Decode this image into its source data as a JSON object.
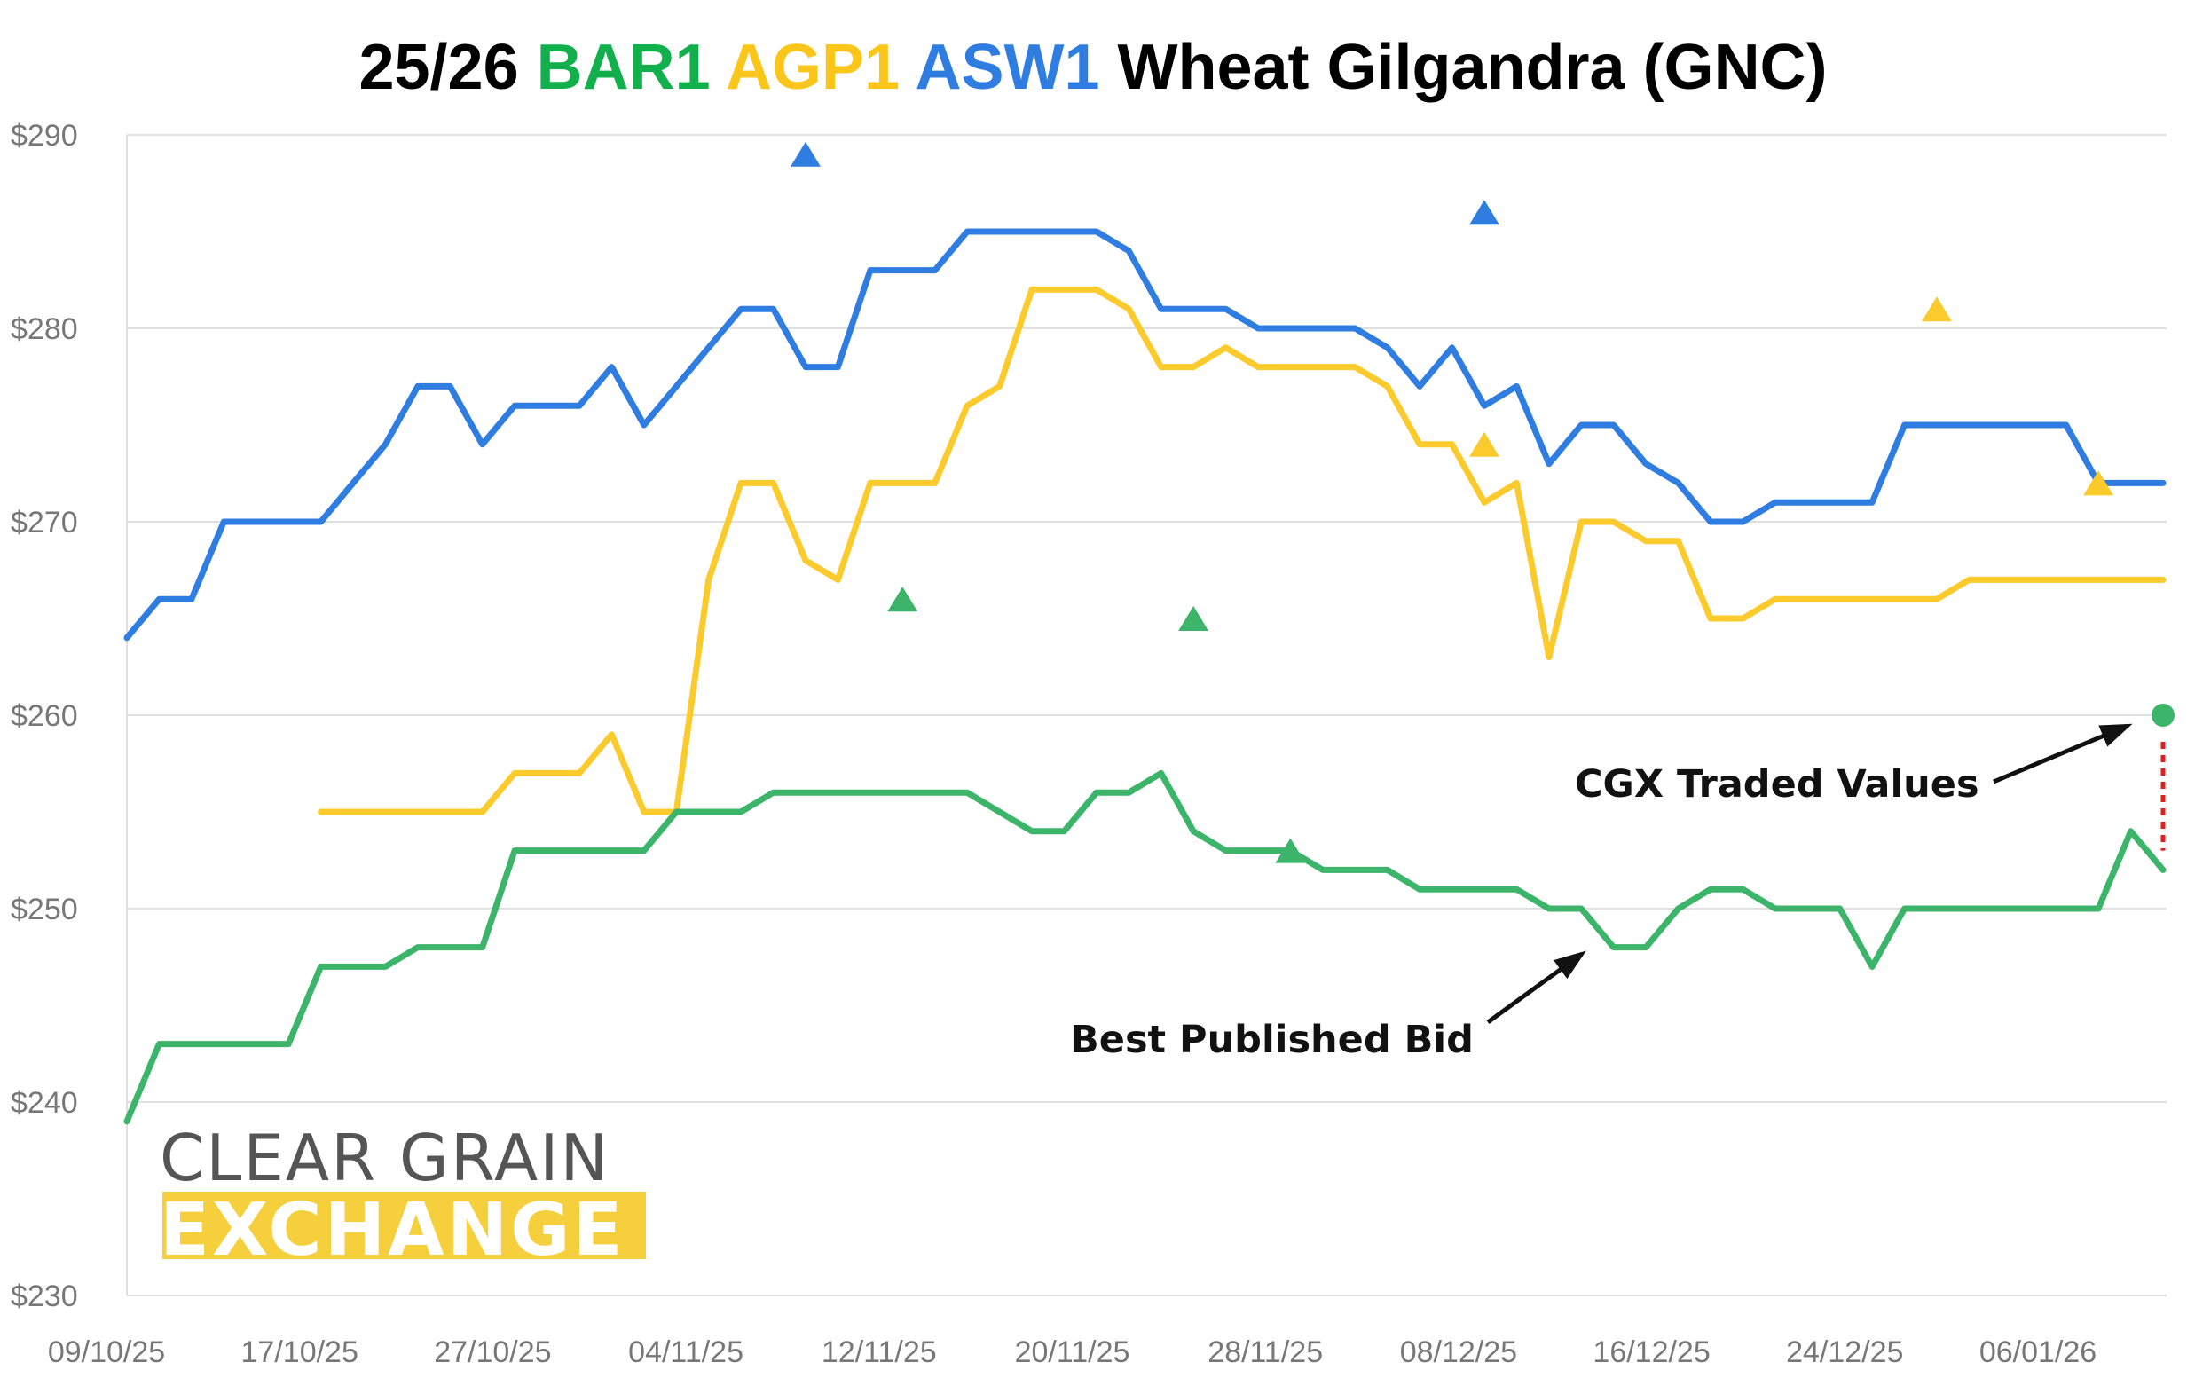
{
  "colors": {
    "bar1": "#3cb56a",
    "agp1": "#fbcb2e",
    "asw1": "#2f7de1",
    "title_bar1": "#12b04c",
    "title_agp1": "#fbc51a",
    "title_asw1": "#2f7de1",
    "title_text": "#000000",
    "grid": "#e0e0e0",
    "logo_band": "#f6cf3d",
    "dotted_line": "#e01f1f"
  },
  "chart_data": {
    "type": "line",
    "title": {
      "prefix": "25/26",
      "bar1": "BAR1",
      "agp1": "AGP1",
      "asw1": "ASW1",
      "suffix": "Wheat Gilgandra (GNC)"
    },
    "xlabel": "",
    "ylabel": "",
    "ylim": [
      230,
      290
    ],
    "yticks": [
      230,
      240,
      250,
      260,
      270,
      280,
      290
    ],
    "ytick_labels": [
      "$230",
      "$240",
      "$250",
      "$260",
      "$270",
      "$280",
      "$290"
    ],
    "xtick_labels": [
      "09/10/25",
      "17/10/25",
      "27/10/25",
      "04/11/25",
      "12/11/25",
      "20/11/25",
      "28/11/25",
      "08/12/25",
      "16/12/25",
      "24/12/25",
      "06/01/26"
    ],
    "grid": true,
    "legend": "none",
    "series": [
      {
        "name": "ASW1",
        "kind": "best_published_bid",
        "values": [
          264,
          266,
          266,
          270,
          270,
          270,
          270,
          272,
          274,
          277,
          277,
          274,
          276,
          276,
          276,
          278,
          275,
          277,
          279,
          281,
          281,
          278,
          278,
          283,
          283,
          283,
          285,
          285,
          285,
          285,
          285,
          284,
          281,
          281,
          281,
          280,
          280,
          280,
          280,
          279,
          277,
          279,
          276,
          277,
          273,
          275,
          275,
          273,
          272,
          270,
          270,
          271,
          271,
          271,
          271,
          275,
          275,
          275,
          275,
          275,
          275,
          272,
          272,
          272
        ]
      },
      {
        "name": "AGP1",
        "kind": "best_published_bid",
        "values": [
          null,
          null,
          null,
          null,
          null,
          null,
          255,
          255,
          255,
          255,
          255,
          255,
          257,
          257,
          257,
          259,
          255,
          255,
          267,
          272,
          272,
          268,
          267,
          272,
          272,
          272,
          276,
          277,
          282,
          282,
          282,
          281,
          278,
          278,
          279,
          278,
          278,
          278,
          278,
          277,
          274,
          274,
          271,
          272,
          263,
          270,
          270,
          269,
          269,
          265,
          265,
          266,
          266,
          266,
          266,
          266,
          266,
          267,
          267,
          267,
          267,
          267,
          267,
          267
        ]
      },
      {
        "name": "BAR1",
        "kind": "best_published_bid",
        "values": [
          239,
          243,
          243,
          243,
          243,
          243,
          247,
          247,
          247,
          248,
          248,
          248,
          253,
          253,
          253,
          253,
          253,
          255,
          255,
          255,
          256,
          256,
          256,
          256,
          256,
          256,
          256,
          255,
          254,
          254,
          256,
          256,
          257,
          254,
          253,
          253,
          253,
          252,
          252,
          252,
          251,
          251,
          251,
          251,
          250,
          250,
          248,
          248,
          250,
          251,
          251,
          250,
          250,
          250,
          247,
          250,
          250,
          250,
          250,
          250,
          250,
          250,
          254,
          252
        ]
      }
    ],
    "traded_values": [
      {
        "series": "ASW1",
        "x_index": 21,
        "value": 289
      },
      {
        "series": "ASW1",
        "x_index": 42,
        "value": 286
      },
      {
        "series": "AGP1",
        "x_index": 42,
        "value": 274
      },
      {
        "series": "AGP1",
        "x_index": 56,
        "value": 281
      },
      {
        "series": "AGP1",
        "x_index": 61,
        "value": 272
      },
      {
        "series": "BAR1",
        "x_index": 24,
        "value": 266
      },
      {
        "series": "BAR1",
        "x_index": 33,
        "value": 265
      },
      {
        "series": "BAR1",
        "x_index": 36,
        "value": 253
      }
    ],
    "latest_traded": {
      "series": "BAR1",
      "x_index": 63,
      "value": 260
    },
    "annotations": [
      {
        "text": "CGX Traded Values",
        "target": "latest_traded"
      },
      {
        "text": "Best Published Bid",
        "target": "BAR1",
        "x_index": 46
      }
    ],
    "logo": {
      "line1": "CLEAR GRAIN",
      "line2": "EXCHANGE"
    }
  }
}
